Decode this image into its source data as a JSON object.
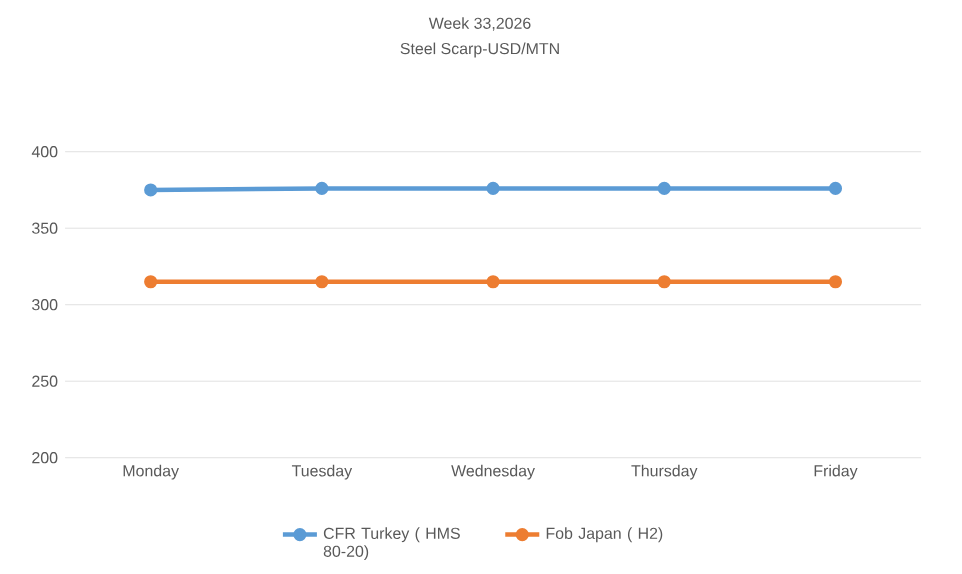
{
  "chart_data": {
    "type": "line",
    "title": "Week 33,2026",
    "subtitle": "Steel Scarp-USD/MTN",
    "categories": [
      "Monday",
      "Tuesday",
      "Wednesday",
      "Thursday",
      "Friday"
    ],
    "series": [
      {
        "name": "CFR Turkey ( HMS 80-20)",
        "color": "#5b9bd5",
        "values": [
          375,
          376,
          376,
          376,
          376
        ]
      },
      {
        "name": "Fob Japan ( H2)",
        "color": "#ed7d31",
        "values": [
          315,
          315,
          315,
          315,
          315
        ]
      }
    ],
    "ylim": [
      200,
      400
    ],
    "yticks": [
      200,
      250,
      300,
      350,
      400
    ],
    "grid": "y",
    "legend": "bottom",
    "marker": "circle",
    "line_style": "solid"
  }
}
